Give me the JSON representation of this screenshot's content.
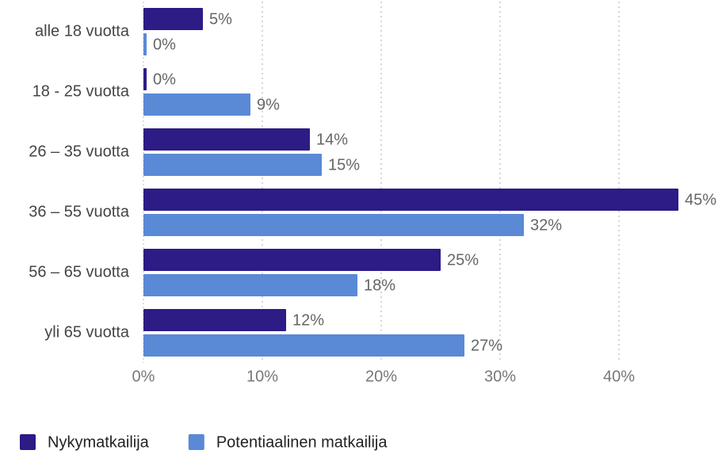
{
  "chart_data": {
    "type": "bar",
    "orientation": "horizontal",
    "categories": [
      "alle 18 vuotta",
      "18 - 25 vuotta",
      "26 – 35 vuotta",
      "36 – 55 vuotta",
      "56 – 65 vuotta",
      "yli 65 vuotta"
    ],
    "series": [
      {
        "name": "Nykymatkailija",
        "color": "#2d1b86",
        "values": [
          5,
          0,
          14,
          45,
          25,
          12
        ],
        "value_labels": [
          "5%",
          "0%",
          "14%",
          "45%",
          "25%",
          "12%"
        ]
      },
      {
        "name": "Potentiaalinen matkailija",
        "color": "#5a89d6",
        "values": [
          0,
          9,
          15,
          32,
          18,
          27
        ],
        "value_labels": [
          "0%",
          "9%",
          "15%",
          "32%",
          "18%",
          "27%"
        ]
      }
    ],
    "xlim": [
      0,
      48
    ],
    "xticks": [
      {
        "value": 0,
        "label": "0%"
      },
      {
        "value": 10,
        "label": "10%"
      },
      {
        "value": 20,
        "label": "20%"
      },
      {
        "value": 30,
        "label": "30%"
      },
      {
        "value": 40,
        "label": "40%"
      }
    ],
    "grid": true,
    "legend": "bottom-left"
  }
}
